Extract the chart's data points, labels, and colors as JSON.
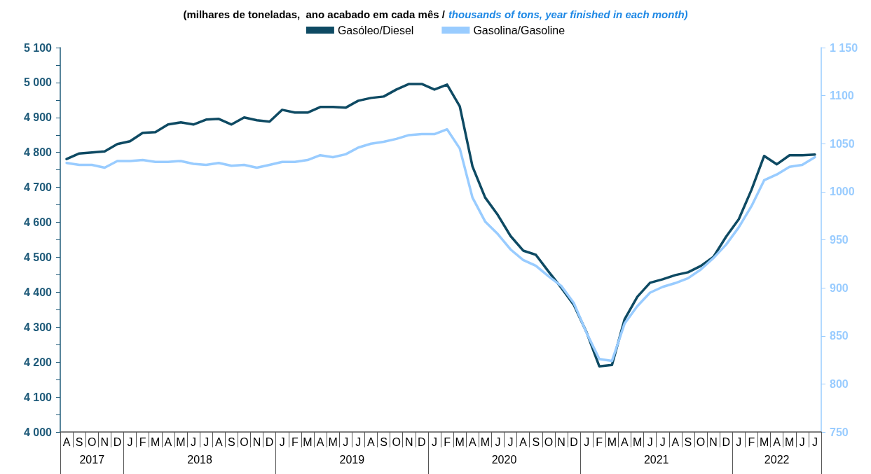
{
  "chart_data": {
    "type": "line",
    "title": "(milhares de toneladas,  ano acabado em cada mês /",
    "subtitle": "thousands of tons, year finished in each month)",
    "categories": [
      "A",
      "S",
      "O",
      "N",
      "D",
      "J",
      "F",
      "M",
      "A",
      "M",
      "J",
      "J",
      "A",
      "S",
      "O",
      "N",
      "D",
      "J",
      "F",
      "M",
      "A",
      "M",
      "J",
      "J",
      "A",
      "S",
      "O",
      "N",
      "D",
      "J",
      "F",
      "M",
      "A",
      "M",
      "J",
      "J",
      "A",
      "S",
      "O",
      "N",
      "D",
      "J",
      "F",
      "M",
      "A",
      "M",
      "J",
      "J",
      "A",
      "S",
      "O",
      "N",
      "D",
      "J",
      "F",
      "M",
      "A",
      "M",
      "J",
      "J"
    ],
    "annotations": [
      "2017",
      "2018",
      "2019",
      "2020",
      "2021",
      "2022"
    ],
    "series": [
      {
        "name": "Gasóleo/Diesel",
        "color": "#0e4a63",
        "values": [
          4781,
          4797,
          4800,
          4803,
          4824,
          4832,
          4856,
          4858,
          4880,
          4886,
          4880,
          4894,
          4896,
          4880,
          4900,
          4892,
          4888,
          4922,
          4914,
          4914,
          4930,
          4930,
          4928,
          4948,
          4956,
          4960,
          4980,
          4996,
          4996,
          4980,
          4994,
          4932,
          4760,
          4671,
          4621,
          4561,
          4519,
          4507,
          4459,
          4413,
          4363,
          4285,
          4188,
          4192,
          4323,
          4387,
          4427,
          4437,
          4449,
          4457,
          4475,
          4501,
          4559,
          4609,
          4693,
          4790,
          4766,
          4792,
          4792,
          4794
        ]
      },
      {
        "name": "Gasolina/Gasoline",
        "color": "#99ccff",
        "axis": "y2",
        "values": [
          1030,
          1028,
          1028,
          1025,
          1032,
          1032,
          1033,
          1031,
          1031,
          1032,
          1029,
          1028,
          1030,
          1027,
          1028,
          1025,
          1028,
          1031,
          1031,
          1033,
          1038,
          1036,
          1039,
          1046,
          1050,
          1052,
          1055,
          1059,
          1060,
          1060,
          1065,
          1045,
          994,
          969,
          956,
          940,
          929,
          923,
          912,
          902,
          884,
          853,
          826,
          824,
          863,
          881,
          895,
          901,
          905,
          910,
          919,
          931,
          945,
          963,
          985,
          1012,
          1018,
          1026,
          1028,
          1036
        ]
      }
    ],
    "ylim": [
      4000,
      5100
    ],
    "yticks": [
      {
        "value": 4000,
        "label": "4 000"
      },
      {
        "value": 4050,
        "label": null
      },
      {
        "value": 4100,
        "label": "4 100"
      },
      {
        "value": 4150,
        "label": null
      },
      {
        "value": 4200,
        "label": "4 200"
      },
      {
        "value": 4250,
        "label": null
      },
      {
        "value": 4300,
        "label": "4 300"
      },
      {
        "value": 4350,
        "label": null
      },
      {
        "value": 4400,
        "label": "4 400"
      },
      {
        "value": 4450,
        "label": null
      },
      {
        "value": 4500,
        "label": "4 500"
      },
      {
        "value": 4550,
        "label": null
      },
      {
        "value": 4600,
        "label": "4 600"
      },
      {
        "value": 4650,
        "label": null
      },
      {
        "value": 4700,
        "label": "4 700"
      },
      {
        "value": 4750,
        "label": null
      },
      {
        "value": 4800,
        "label": "4 800"
      },
      {
        "value": 4850,
        "label": null
      },
      {
        "value": 4900,
        "label": "4 900"
      },
      {
        "value": 4950,
        "label": null
      },
      {
        "value": 5000,
        "label": "5 000"
      },
      {
        "value": 5050,
        "label": null
      },
      {
        "value": 5100,
        "label": "5 100"
      }
    ],
    "y2lim": [
      750,
      1150
    ],
    "y2ticks": [
      750,
      800,
      850,
      900,
      950,
      1000,
      1050,
      1100,
      {
        "value": 1150,
        "label": "1 150"
      }
    ],
    "legend": "top",
    "marker": "none",
    "line_style": "solid"
  }
}
